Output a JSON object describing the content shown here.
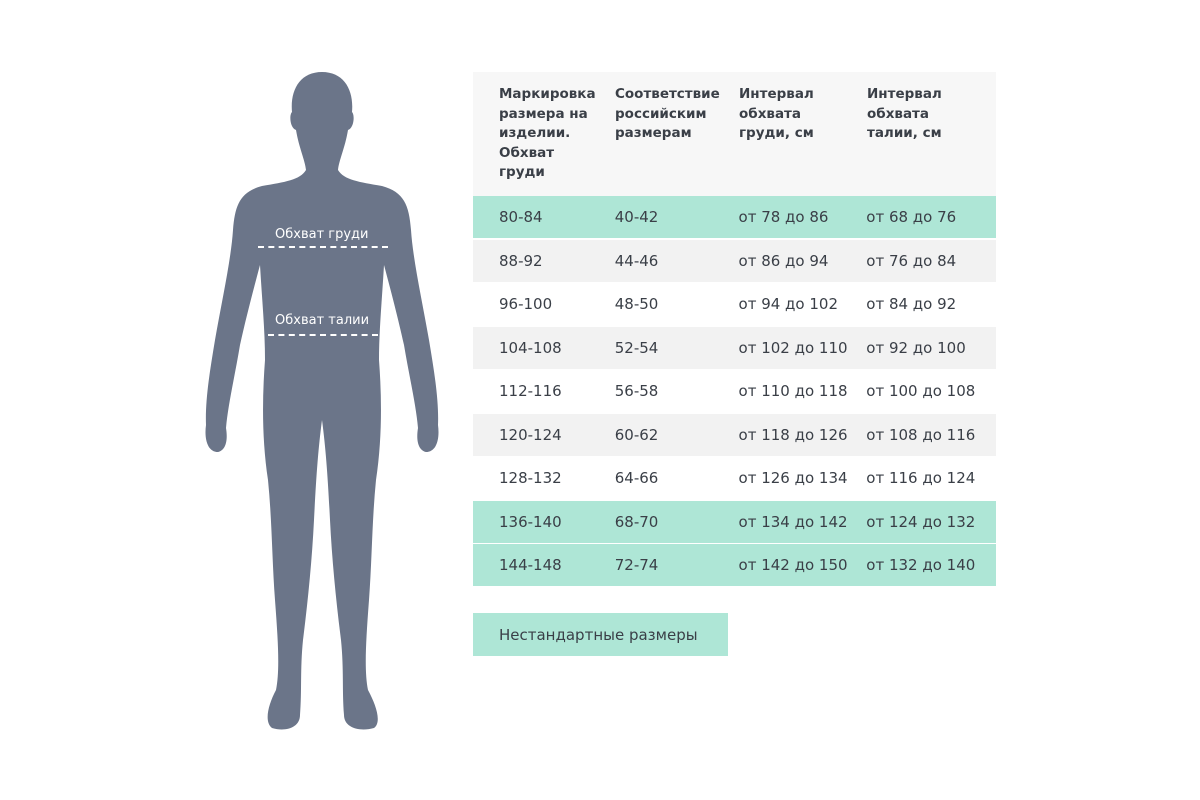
{
  "figure": {
    "chest_label": "Обхват груди",
    "waist_label": "Обхват талии",
    "silhouette_color": "#6b7589"
  },
  "table": {
    "headers": [
      "Маркировка размера на изделии. Обхват груди",
      "Соответствие российским размерам",
      "Интервал обхвата груди, см",
      "Интервал обхвата талии, см"
    ],
    "rows": [
      {
        "cells": [
          "80-84",
          "40-42",
          "от 78 до 86",
          "от 68 до 76"
        ],
        "highlight": "teal"
      },
      {
        "cells": [
          "88-92",
          "44-46",
          "от 86 до 94",
          "от 76 до 84"
        ],
        "highlight": "grey"
      },
      {
        "cells": [
          "96-100",
          "48-50",
          "от 94 до 102",
          "от 84 до 92"
        ],
        "highlight": "none"
      },
      {
        "cells": [
          "104-108",
          "52-54",
          "от 102 до 110",
          "от 92 до 100"
        ],
        "highlight": "grey"
      },
      {
        "cells": [
          "112-116",
          "56-58",
          "от 110 до 118",
          "от 100 до 108"
        ],
        "highlight": "none"
      },
      {
        "cells": [
          "120-124",
          "60-62",
          "от 118 до 126",
          "от 108 до 116"
        ],
        "highlight": "grey"
      },
      {
        "cells": [
          "128-132",
          "64-66",
          "от 126 до 134",
          "от 116 до 124"
        ],
        "highlight": "none"
      },
      {
        "cells": [
          "136-140",
          "68-70",
          "от 134 до 142",
          "от 124 до 132"
        ],
        "highlight": "teal"
      },
      {
        "cells": [
          "144-148",
          "72-74",
          "от 142 до 150",
          "от 132 до 140"
        ],
        "highlight": "teal"
      }
    ],
    "colors": {
      "teal": "#aee6d6",
      "grey": "#f2f2f2",
      "none": "#ffffff"
    }
  },
  "nonstandard_button": "Нестандартные размеры"
}
